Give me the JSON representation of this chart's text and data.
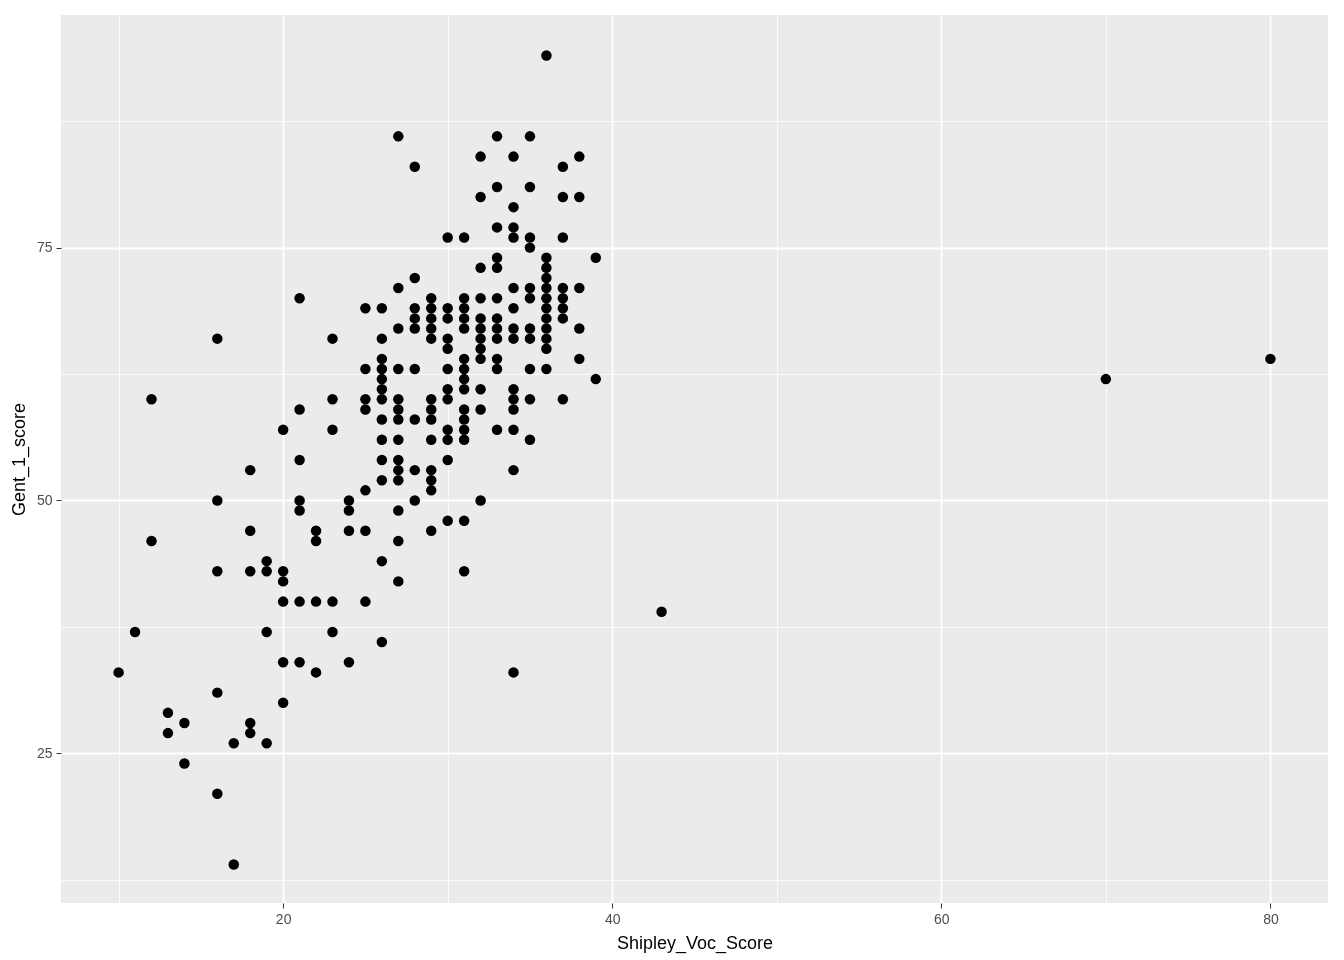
{
  "chart_data": {
    "type": "scatter",
    "xlabel": "Shipley_Voc_Score",
    "ylabel": "Gent_1_score",
    "xlim": [
      6.5,
      83.5
    ],
    "ylim": [
      10.2,
      98
    ],
    "xticks": [
      {
        "value": 10,
        "label": null
      },
      20,
      {
        "value": 30,
        "label": null
      },
      40,
      {
        "value": 50,
        "label": null
      },
      60,
      {
        "value": 70,
        "label": null
      },
      80
    ],
    "yticks": [
      {
        "value": 12.5,
        "label": null
      },
      25,
      {
        "value": 37.5,
        "label": null
      },
      50,
      {
        "value": 62.5,
        "label": null
      },
      75,
      {
        "value": 87.5,
        "label": null
      }
    ],
    "grid": true,
    "marker": "circle",
    "series": [
      {
        "color": "#000000",
        "x": [
          10,
          11,
          12,
          12,
          13,
          13,
          14,
          14,
          16,
          16,
          16,
          16,
          16,
          17,
          17,
          18,
          18,
          18,
          18,
          18,
          19,
          19,
          19,
          19,
          20,
          20,
          20,
          20,
          20,
          20,
          21,
          21,
          21,
          21,
          21,
          21,
          21,
          22,
          22,
          22,
          22,
          23,
          23,
          23,
          23,
          23,
          24,
          24,
          24,
          24,
          25,
          25,
          25,
          25,
          25,
          25,
          25,
          26,
          26,
          26,
          26,
          26,
          26,
          26,
          26,
          26,
          26,
          26,
          26,
          26,
          27,
          27,
          27,
          27,
          27,
          27,
          27,
          27,
          27,
          27,
          27,
          27,
          27,
          27,
          28,
          28,
          28,
          28,
          28,
          28,
          28,
          28,
          28,
          29,
          29,
          29,
          29,
          29,
          29,
          29,
          29,
          29,
          29,
          29,
          29,
          29,
          30,
          30,
          30,
          30,
          30,
          30,
          30,
          30,
          30,
          30,
          30,
          30,
          31,
          31,
          31,
          31,
          31,
          31,
          31,
          31,
          31,
          31,
          31,
          31,
          31,
          31,
          31,
          32,
          32,
          32,
          32,
          32,
          32,
          32,
          32,
          32,
          32,
          32,
          32,
          33,
          33,
          33,
          33,
          33,
          33,
          33,
          33,
          33,
          33,
          33,
          33,
          34,
          34,
          34,
          34,
          34,
          34,
          34,
          34,
          34,
          34,
          34,
          34,
          34,
          34,
          35,
          35,
          35,
          35,
          35,
          35,
          35,
          35,
          35,
          35,
          35,
          36,
          36,
          36,
          36,
          36,
          36,
          36,
          36,
          36,
          36,
          36,
          36,
          37,
          37,
          37,
          37,
          37,
          37,
          37,
          37,
          38,
          38,
          38,
          38,
          38,
          39,
          39,
          43,
          70,
          80
        ],
        "values": [
          33,
          37,
          60,
          46,
          29,
          27,
          28,
          24,
          66,
          50,
          43,
          31,
          21,
          26,
          14,
          53,
          47,
          43,
          28,
          27,
          44,
          43,
          37,
          26,
          57,
          43,
          42,
          40,
          34,
          30,
          70,
          59,
          54,
          50,
          49,
          40,
          34,
          47,
          46,
          40,
          33,
          66,
          60,
          57,
          40,
          37,
          50,
          49,
          47,
          34,
          69,
          63,
          60,
          59,
          51,
          47,
          40,
          69,
          66,
          64,
          63,
          62,
          61,
          60,
          58,
          56,
          54,
          52,
          44,
          36,
          86,
          71,
          67,
          63,
          60,
          59,
          58,
          56,
          54,
          53,
          52,
          49,
          46,
          42,
          83,
          72,
          69,
          68,
          67,
          63,
          58,
          53,
          50,
          70,
          69,
          68,
          67,
          66,
          60,
          59,
          58,
          56,
          53,
          52,
          51,
          47,
          76,
          69,
          68,
          66,
          65,
          63,
          61,
          60,
          57,
          56,
          54,
          48,
          76,
          70,
          69,
          68,
          67,
          64,
          63,
          62,
          61,
          59,
          58,
          57,
          56,
          48,
          43,
          84,
          80,
          73,
          70,
          68,
          67,
          66,
          65,
          64,
          61,
          59,
          50,
          86,
          81,
          77,
          74,
          73,
          70,
          68,
          67,
          66,
          64,
          63,
          57,
          84,
          79,
          77,
          76,
          71,
          69,
          67,
          66,
          61,
          60,
          59,
          57,
          53,
          33,
          86,
          81,
          76,
          75,
          71,
          70,
          67,
          66,
          63,
          60,
          56,
          94,
          74,
          73,
          72,
          71,
          70,
          69,
          68,
          67,
          66,
          65,
          63,
          83,
          80,
          76,
          71,
          70,
          69,
          68,
          60,
          84,
          80,
          71,
          67,
          64,
          74,
          62,
          39,
          62,
          64
        ]
      }
    ]
  }
}
